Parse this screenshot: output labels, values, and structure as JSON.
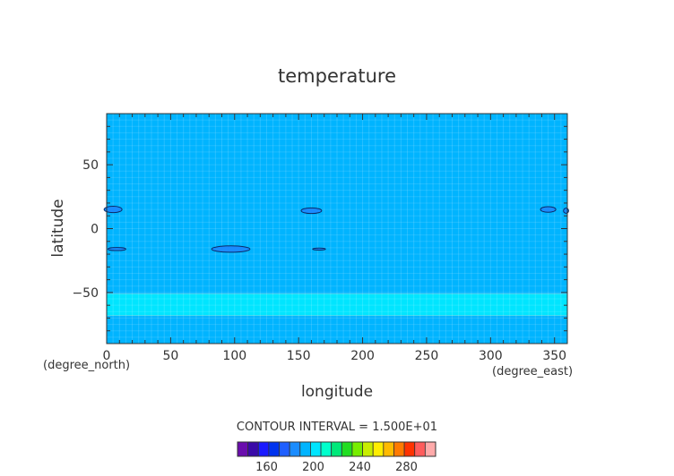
{
  "chart_data": {
    "type": "heatmap",
    "title": "temperature",
    "xlabel": "longitude",
    "ylabel": "latitude",
    "x_units": "(degree_east)",
    "y_units": "(degree_north)",
    "xlim": [
      0,
      360
    ],
    "ylim": [
      -90,
      90
    ],
    "x_ticks": [
      0,
      50,
      100,
      150,
      200,
      250,
      300,
      350
    ],
    "y_ticks": [
      -50,
      0,
      50
    ],
    "contour_interval_text": "CONTOUR INTERVAL = 1.500E+01",
    "colorbar": {
      "colors": [
        "#6a0dad",
        "#3a0aa8",
        "#1a1aff",
        "#0033ee",
        "#1f5fff",
        "#1a8cff",
        "#00b4ff",
        "#00e5ff",
        "#00ffcc",
        "#00e87a",
        "#22dd22",
        "#77ee00",
        "#c8ee00",
        "#ffee00",
        "#ffbb00",
        "#ff7a00",
        "#ff3300",
        "#ff5c5c",
        "#ffaaaa"
      ],
      "tick_labels": [
        "160",
        "200",
        "240",
        "280"
      ],
      "tick_values": [
        160,
        200,
        240,
        280
      ]
    },
    "bands": [
      {
        "lat_from": -90,
        "lat_to": -68,
        "color": "#00b4ff"
      },
      {
        "lat_from": -68,
        "lat_to": -51,
        "color": "#00e5ff"
      },
      {
        "lat_from": -51,
        "lat_to": 90,
        "color": "#00b4ff"
      }
    ],
    "cold_patches": [
      {
        "lon": 5,
        "lat": 15,
        "rlon": 7,
        "rlat": 2.5
      },
      {
        "lon": 8,
        "lat": -16,
        "rlon": 7,
        "rlat": 1.2
      },
      {
        "lon": 97,
        "lat": -16,
        "rlon": 15,
        "rlat": 2.5
      },
      {
        "lon": 160,
        "lat": 14,
        "rlon": 8,
        "rlat": 2.2
      },
      {
        "lon": 166,
        "lat": -16,
        "rlon": 5,
        "rlat": 0.8
      },
      {
        "lon": 345,
        "lat": 15,
        "rlon": 6,
        "rlat": 2.2
      },
      {
        "lon": 359,
        "lat": 14,
        "rlon": 2,
        "rlat": 2
      }
    ]
  }
}
